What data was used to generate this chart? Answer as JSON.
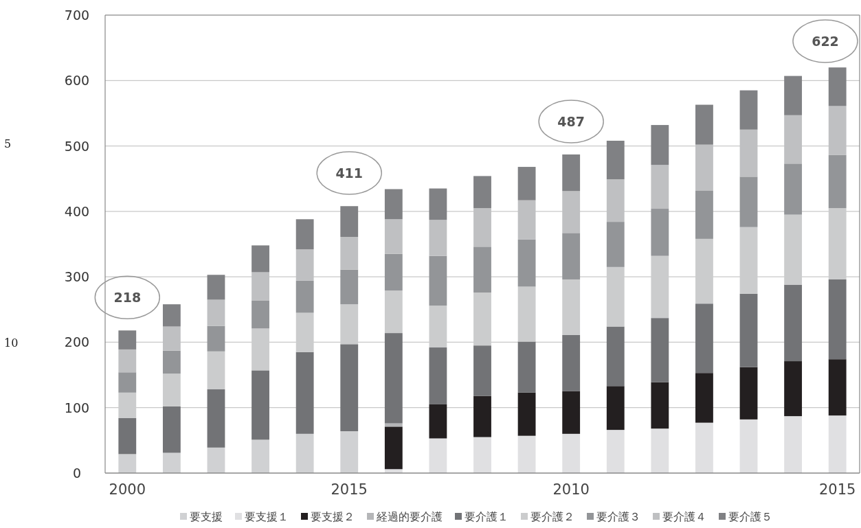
{
  "chart_data": {
    "type": "bar",
    "stacked": true,
    "categories": [
      "2000",
      null,
      null,
      null,
      null,
      "2015",
      null,
      null,
      null,
      null,
      "2010",
      null,
      null,
      null,
      null,
      null,
      "2015"
    ],
    "series": [
      {
        "name": "要支援",
        "color": "#d0d1d3",
        "values": [
          29,
          31,
          39,
          51,
          60,
          64,
          null,
          null,
          null,
          null,
          null,
          null,
          null,
          null,
          null,
          null,
          null
        ]
      },
      {
        "name": "要支援１",
        "color": "#e0e0e2",
        "values": [
          null,
          null,
          null,
          null,
          null,
          null,
          6,
          53,
          55,
          57,
          60,
          66,
          68,
          77,
          82,
          87,
          88
        ]
      },
      {
        "name": "要支援２",
        "color": "#231f20",
        "values": [
          null,
          null,
          null,
          null,
          null,
          null,
          65,
          52,
          63,
          66,
          65,
          67,
          71,
          76,
          80,
          84,
          86
        ]
      },
      {
        "name": "経過的要介護",
        "color": "#b5b6b8",
        "values": [
          null,
          null,
          null,
          null,
          null,
          null,
          5,
          null,
          null,
          null,
          null,
          null,
          null,
          null,
          null,
          null,
          null
        ]
      },
      {
        "name": "要介護１",
        "color": "#727376",
        "values": [
          55,
          71,
          89,
          106,
          125,
          133,
          138,
          87,
          77,
          78,
          86,
          91,
          98,
          106,
          112,
          117,
          122
        ]
      },
      {
        "name": "要介護２",
        "color": "#cbcccd",
        "values": [
          39,
          50,
          58,
          64,
          60,
          61,
          65,
          64,
          81,
          84,
          85,
          91,
          95,
          99,
          102,
          107,
          109
        ]
      },
      {
        "name": "要介護３",
        "color": "#939598",
        "values": [
          31,
          35,
          39,
          43,
          49,
          53,
          56,
          76,
          70,
          72,
          71,
          69,
          72,
          74,
          77,
          78,
          81
        ]
      },
      {
        "name": "要介護４",
        "color": "#bfc0c2",
        "values": [
          35,
          37,
          40,
          43,
          48,
          50,
          53,
          55,
          59,
          60,
          64,
          65,
          67,
          70,
          72,
          74,
          75
        ]
      },
      {
        "name": "要介護５",
        "color": "#808184",
        "values": [
          29,
          34,
          38,
          41,
          46,
          47,
          46,
          48,
          49,
          51,
          56,
          59,
          61,
          61,
          60,
          60,
          59
        ]
      }
    ],
    "ylim": [
      0,
      700
    ],
    "yticks": [
      0,
      100,
      200,
      300,
      400,
      500,
      600,
      700
    ],
    "grid": "y",
    "legend": "bottom",
    "annotations": [
      {
        "text": "218",
        "x": "2000",
        "y": 218
      },
      {
        "text": "487",
        "x": "2010",
        "y": 487
      },
      "411",
      "622",
      "5",
      "10"
    ]
  }
}
